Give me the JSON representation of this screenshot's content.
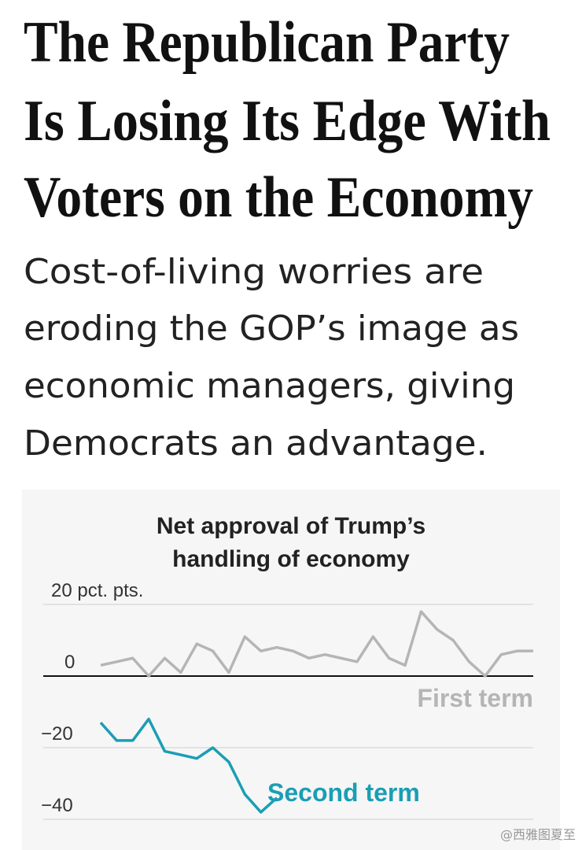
{
  "headline": [
    "The Republican Party",
    "Is Losing Its Edge With",
    "Voters on the Economy"
  ],
  "dek": [
    "Cost-of-living worries are",
    "eroding the GOP’s image as",
    "economic managers, giving",
    "Democrats an advantage."
  ],
  "watermark": "@西雅图夏至",
  "chart_data": {
    "type": "line",
    "title": [
      "Net approval of Trump’s",
      "handling of economy"
    ],
    "series": [
      {
        "name": "First term",
        "color": "#b5b5b5",
        "values": [
          3,
          4,
          5,
          0,
          5,
          1,
          9,
          7,
          1,
          11,
          7,
          8,
          7,
          5,
          6,
          5,
          4,
          11,
          5,
          3,
          18,
          13,
          10,
          4,
          0,
          6,
          7,
          7
        ]
      },
      {
        "name": "Second term",
        "color": "#1a9eb5",
        "values": [
          -13,
          -18,
          -18,
          -12,
          -21,
          -22,
          -23,
          -20,
          -24,
          -33,
          -38,
          -34
        ]
      }
    ],
    "ylim": [
      -45,
      20
    ],
    "yticks": [
      {
        "value": 20,
        "label": "20 pct. pts."
      },
      0,
      {
        "value": -20,
        "label": "−20"
      },
      {
        "value": -40,
        "label": "−40"
      }
    ],
    "grid": true
  }
}
